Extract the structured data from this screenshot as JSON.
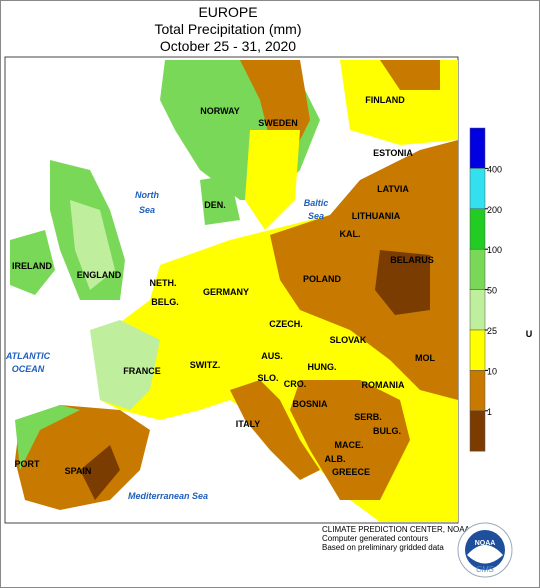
{
  "header": {
    "title": "EUROPE",
    "subtitle": "Total Precipitation (mm)",
    "dates": "October 25 - 31, 2020"
  },
  "labels": {
    "finland": "FINLAND",
    "norway": "NORWAY",
    "sweden": "SWEDEN",
    "estonia": "ESTONIA",
    "latvia": "LATVIA",
    "denmark": "DEN.",
    "lithuania": "LITHUANIA",
    "kaliningrad": "KAL.",
    "ireland": "IRELAND",
    "england": "ENGLAND",
    "belarus": "BELARUS",
    "poland": "POLAND",
    "netherlands": "NETH.",
    "belgium": "BELG.",
    "germany": "GERMANY",
    "czech": "CZECH.",
    "slovakia": "SLOVAK",
    "ukraine": "U",
    "moldova": "MOL",
    "france": "FRANCE",
    "switzerland": "SWITZ.",
    "austria": "AUS.",
    "hungary": "HUNG.",
    "romania": "ROMANIA",
    "slovenia": "SLO.",
    "croatia": "CRO.",
    "bosnia": "BOSNIA",
    "serbia": "SERB.",
    "italy": "ITALY",
    "bulgaria": "BULG.",
    "portugal": "PORT",
    "spain": "SPAIN",
    "macedonia": "MACE.",
    "albania": "ALB.",
    "greece": "GREECE"
  },
  "seas": {
    "atlantic": [
      "ATLANTIC",
      "OCEAN"
    ],
    "north": [
      "North",
      "Sea"
    ],
    "baltic": [
      "Baltic",
      "Sea"
    ],
    "mediterranean": "Mediterranean Sea"
  },
  "legend": {
    "colors": [
      "#0000e0",
      "#33e0f0",
      "#22cc22",
      "#7ad858",
      "#bfee9c",
      "#ffff00",
      "#c87a00",
      "#7a3c00"
    ],
    "ticks": [
      400,
      200,
      100,
      50,
      25,
      10,
      1
    ]
  },
  "footer": [
    "CLIMATE PREDICTION CENTER, NOAA",
    "Computer generated contours",
    "Based on preliminary gridded data"
  ],
  "logo": [
    "NOAA",
    "CMS"
  ]
}
